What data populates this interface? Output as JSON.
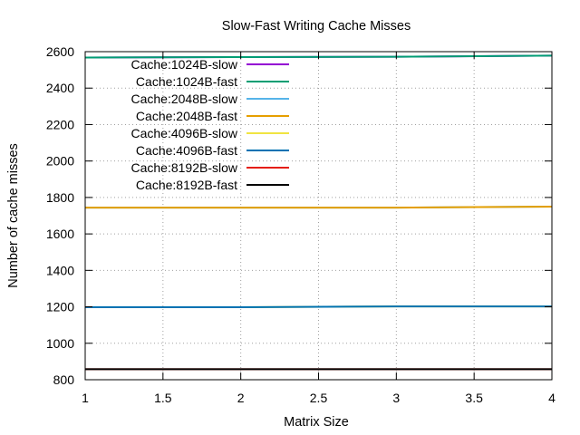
{
  "chart_data": {
    "type": "line",
    "title": "Slow-Fast Writing Cache Misses",
    "xlabel": "Matrix Size",
    "ylabel": "Number of cache misses",
    "xlim": [
      1,
      4
    ],
    "ylim": [
      800,
      2600
    ],
    "xticks": [
      "1",
      "1.5",
      "2",
      "2.5",
      "3",
      "3.5",
      "4"
    ],
    "yticks": [
      "800",
      "1000",
      "1200",
      "1400",
      "1600",
      "1800",
      "2000",
      "2200",
      "2400",
      "2600"
    ],
    "grid": true,
    "legend_position": "top-left",
    "x": [
      1,
      2,
      3,
      4
    ],
    "series": [
      {
        "name": "Cache:1024B-slow",
        "color": "#9400d3",
        "values": [
          2568,
          2570,
          2572,
          2578
        ]
      },
      {
        "name": "Cache:1024B-fast",
        "color": "#009e73",
        "values": [
          2568,
          2570,
          2572,
          2578
        ]
      },
      {
        "name": "Cache:2048B-slow",
        "color": "#56b4e9",
        "values": [
          1744,
          1744,
          1744,
          1750
        ]
      },
      {
        "name": "Cache:2048B-fast",
        "color": "#e69f00",
        "values": [
          1744,
          1744,
          1744,
          1750
        ]
      },
      {
        "name": "Cache:4096B-slow",
        "color": "#f0e442",
        "values": [
          1198,
          1198,
          1202,
          1202
        ]
      },
      {
        "name": "Cache:4096B-fast",
        "color": "#0072b2",
        "values": [
          1198,
          1198,
          1202,
          1202
        ]
      },
      {
        "name": "Cache:8192B-slow",
        "color": "#e51e10",
        "values": [
          858,
          858,
          858,
          858
        ]
      },
      {
        "name": "Cache:8192B-fast",
        "color": "#000000",
        "values": [
          858,
          858,
          858,
          858
        ]
      }
    ]
  }
}
